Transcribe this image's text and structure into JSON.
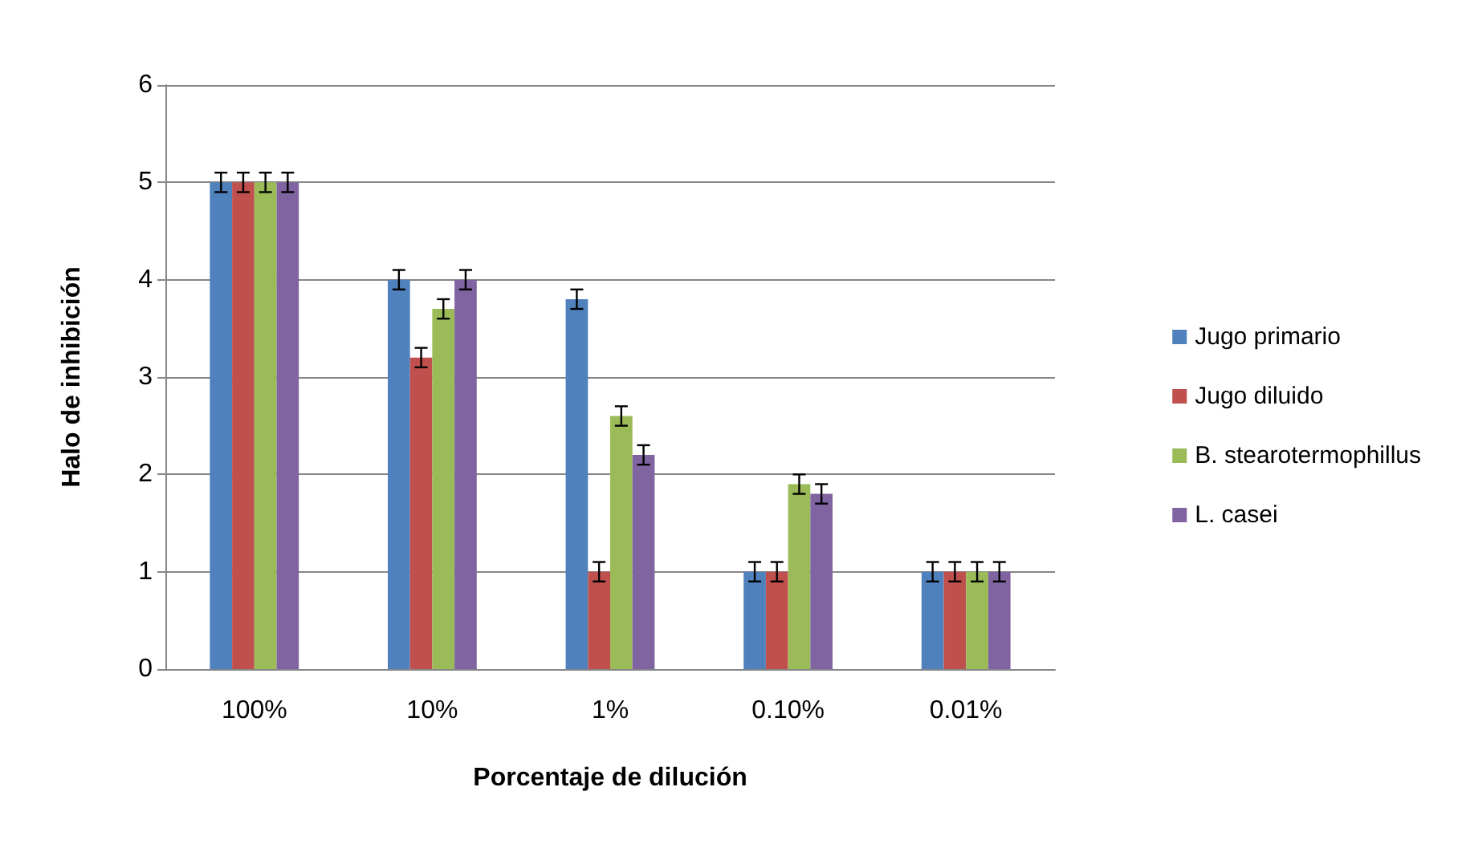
{
  "chart_data": {
    "type": "bar",
    "xlabel": "Porcentaje de dilución",
    "ylabel": "Halo de inhibición",
    "categories": [
      "100%",
      "10%",
      "1%",
      "0.10%",
      "0.01%"
    ],
    "series": [
      {
        "name": "Jugo primario",
        "color": "#4f81bd",
        "values": [
          5,
          4,
          3.8,
          1,
          1
        ],
        "errors": [
          0.1,
          0.1,
          0.1,
          0.1,
          0.1
        ]
      },
      {
        "name": "Jugo diluido",
        "color": "#c0504d",
        "values": [
          5,
          3.2,
          1,
          1,
          1
        ],
        "errors": [
          0.1,
          0.1,
          0.1,
          0.1,
          0.1
        ]
      },
      {
        "name": "B. stearotermophillus",
        "color": "#9bbb59",
        "values": [
          5,
          3.7,
          2.6,
          1.9,
          1
        ],
        "errors": [
          0.1,
          0.1,
          0.1,
          0.1,
          0.1
        ]
      },
      {
        "name": "L. casei",
        "color": "#8064a2",
        "values": [
          5,
          4,
          2.2,
          1.8,
          1
        ],
        "errors": [
          0.1,
          0.1,
          0.1,
          0.1,
          0.1
        ]
      }
    ],
    "ylim": [
      0,
      6
    ],
    "yticks": [
      0,
      1,
      2,
      3,
      4,
      5,
      6
    ],
    "grid": "y",
    "legend": "right"
  }
}
